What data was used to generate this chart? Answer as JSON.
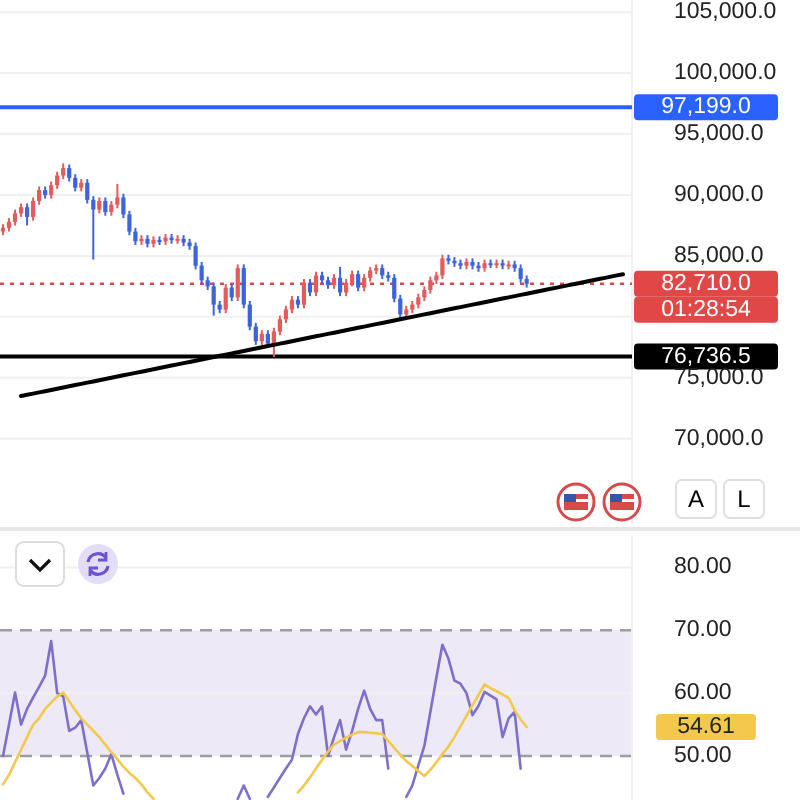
{
  "chart_data": [
    {
      "type": "candlestick",
      "categories": [
        null,
        null,
        null,
        null,
        null,
        null,
        null,
        null,
        null,
        null,
        null,
        null,
        null,
        null,
        null,
        null,
        null,
        null,
        null,
        null,
        null,
        null,
        null,
        null,
        null,
        null,
        null,
        null,
        null,
        null,
        null,
        null,
        null,
        null,
        null,
        null,
        null,
        null,
        null,
        null,
        null,
        null,
        null,
        null,
        null,
        null,
        null,
        null,
        null,
        null,
        null,
        null,
        null,
        null,
        null,
        null,
        null,
        null,
        null,
        null,
        null,
        null,
        null,
        null,
        null,
        null,
        null,
        null,
        null,
        null,
        null,
        null,
        null,
        null,
        null,
        null,
        null,
        null,
        null,
        null,
        null,
        null,
        null,
        null,
        null,
        null,
        null,
        null,
        null,
        null,
        null,
        null,
        null,
        null,
        null,
        null,
        null,
        null,
        null,
        null,
        null,
        null,
        null,
        null,
        null
      ],
      "ohlc": [
        [
          87000,
          87600,
          86700,
          87300
        ],
        [
          87300,
          88100,
          87000,
          87800
        ],
        [
          87800,
          88800,
          87500,
          88500
        ],
        [
          88500,
          89300,
          88200,
          89000
        ],
        [
          89000,
          89300,
          87500,
          88200
        ],
        [
          88200,
          89800,
          87900,
          89500
        ],
        [
          89500,
          90700,
          89200,
          90400
        ],
        [
          90400,
          90700,
          89700,
          90000
        ],
        [
          90000,
          91100,
          89700,
          90800
        ],
        [
          90800,
          91900,
          90500,
          91600
        ],
        [
          91600,
          92600,
          91300,
          92200
        ],
        [
          92200,
          92500,
          91100,
          91400
        ],
        [
          91400,
          91700,
          90300,
          90600
        ],
        [
          90600,
          91300,
          90300,
          91000
        ],
        [
          91000,
          91300,
          89300,
          89600
        ],
        [
          89600,
          89900,
          84700,
          88800
        ],
        [
          88800,
          89800,
          88500,
          89500
        ],
        [
          89500,
          89800,
          88300,
          88600
        ],
        [
          88600,
          89500,
          88300,
          89200
        ],
        [
          89200,
          90900,
          88900,
          89800
        ],
        [
          89800,
          90100,
          88100,
          88400
        ],
        [
          88400,
          88700,
          86700,
          87000
        ],
        [
          87000,
          87300,
          85900,
          86200
        ],
        [
          86200,
          86700,
          85900,
          86400
        ],
        [
          86400,
          86700,
          85700,
          86000
        ],
        [
          86000,
          86600,
          85700,
          86300
        ],
        [
          86300,
          86600,
          85900,
          86200
        ],
        [
          86200,
          86800,
          85900,
          86500
        ],
        [
          86500,
          86800,
          86000,
          86300
        ],
        [
          86300,
          86700,
          86000,
          86400
        ],
        [
          86400,
          86700,
          85800,
          86100
        ],
        [
          86100,
          86400,
          85500,
          85800
        ],
        [
          85800,
          86100,
          83900,
          84200
        ],
        [
          84200,
          84500,
          82700,
          83000
        ],
        [
          83000,
          83300,
          82200,
          82500
        ],
        [
          82500,
          82800,
          80100,
          81000
        ],
        [
          81000,
          81300,
          80300,
          80600
        ],
        [
          80600,
          82700,
          80300,
          82400
        ],
        [
          82400,
          82700,
          81300,
          81600
        ],
        [
          81600,
          84300,
          81300,
          84000
        ],
        [
          84000,
          84300,
          80700,
          81000
        ],
        [
          81000,
          81300,
          78900,
          79200
        ],
        [
          79200,
          79500,
          77700,
          78000
        ],
        [
          78000,
          78900,
          77700,
          78600
        ],
        [
          78600,
          78900,
          77500,
          77800
        ],
        [
          77800,
          79100,
          76700,
          78800
        ],
        [
          78800,
          80100,
          78500,
          79800
        ],
        [
          79800,
          80900,
          79500,
          80600
        ],
        [
          80600,
          81700,
          80300,
          81400
        ],
        [
          81400,
          81700,
          80700,
          81000
        ],
        [
          81000,
          83100,
          80700,
          82800
        ],
        [
          82800,
          83100,
          81700,
          82000
        ],
        [
          82000,
          83700,
          81700,
          83400
        ],
        [
          83400,
          83700,
          82700,
          83000
        ],
        [
          83000,
          83300,
          82300,
          82600
        ],
        [
          82600,
          83500,
          82300,
          83200
        ],
        [
          83200,
          84100,
          81700,
          82000
        ],
        [
          82000,
          83100,
          81700,
          82800
        ],
        [
          82800,
          83800,
          82500,
          83500
        ],
        [
          83500,
          83800,
          82100,
          82400
        ],
        [
          82400,
          83500,
          82100,
          83200
        ],
        [
          83200,
          84100,
          82900,
          83800
        ],
        [
          83800,
          84300,
          83500,
          84000
        ],
        [
          84000,
          84300,
          83100,
          83400
        ],
        [
          83400,
          83700,
          82900,
          83200
        ],
        [
          83200,
          83500,
          81200,
          81500
        ],
        [
          81500,
          81800,
          79900,
          80200
        ],
        [
          80200,
          80900,
          79900,
          80600
        ],
        [
          80600,
          81300,
          80300,
          81000
        ],
        [
          81000,
          81900,
          80700,
          81600
        ],
        [
          81600,
          82500,
          81300,
          82200
        ],
        [
          82200,
          83300,
          81900,
          83000
        ],
        [
          83000,
          83700,
          82700,
          83400
        ],
        [
          83400,
          85100,
          83100,
          84800
        ],
        [
          84800,
          85100,
          84300,
          84600
        ],
        [
          84600,
          84900,
          84100,
          84400
        ],
        [
          84400,
          84700,
          83900,
          84200
        ],
        [
          84200,
          84800,
          83900,
          84500
        ],
        [
          84500,
          84800,
          83900,
          84200
        ],
        [
          84200,
          84500,
          83700,
          84000
        ],
        [
          84000,
          84700,
          83700,
          84400
        ],
        [
          84400,
          84700,
          84000,
          84300
        ],
        [
          84300,
          84700,
          84000,
          84400
        ],
        [
          84400,
          84700,
          83900,
          84200
        ],
        [
          84200,
          84600,
          83900,
          84300
        ],
        [
          84300,
          84600,
          83700,
          84000
        ],
        [
          84000,
          84300,
          82800,
          83100
        ],
        [
          83100,
          83400,
          82400,
          82710
        ],
        null,
        null,
        null,
        null,
        null,
        null,
        null,
        null,
        null,
        null,
        null,
        null,
        null,
        null,
        null,
        null,
        null
      ],
      "colors": [
        "#e35b5b",
        "#e35b5b",
        "#e35b5b",
        "#e35b5b",
        "#3d63dd",
        "#e35b5b",
        "#e35b5b",
        "#3d63dd",
        "#e35b5b",
        "#e35b5b",
        "#e35b5b",
        "#3d63dd",
        "#3d63dd",
        "#e35b5b",
        "#3d63dd",
        "#3d63dd",
        "#e35b5b",
        "#3d63dd",
        "#e35b5b",
        "#e35b5b",
        "#3d63dd",
        "#3d63dd",
        "#3d63dd",
        "#e35b5b",
        "#3d63dd",
        "#e35b5b",
        "#3d63dd",
        "#e35b5b",
        "#3d63dd",
        "#e35b5b",
        "#3d63dd",
        "#3d63dd",
        "#3d63dd",
        "#3d63dd",
        "#3d63dd",
        "#3d63dd",
        "#3d63dd",
        "#e35b5b",
        "#3d63dd",
        "#e35b5b",
        "#3d63dd",
        "#3d63dd",
        "#3d63dd",
        "#e35b5b",
        "#3d63dd",
        "#e35b5b",
        "#e35b5b",
        "#e35b5b",
        "#e35b5b",
        "#3d63dd",
        "#e35b5b",
        "#3d63dd",
        "#e35b5b",
        "#3d63dd",
        "#3d63dd",
        "#e35b5b",
        "#3d63dd",
        "#e35b5b",
        "#e35b5b",
        "#3d63dd",
        "#e35b5b",
        "#e35b5b",
        "#e35b5b",
        "#3d63dd",
        "#3d63dd",
        "#3d63dd",
        "#3d63dd",
        "#e35b5b",
        "#e35b5b",
        "#e35b5b",
        "#e35b5b",
        "#e35b5b",
        "#e35b5b",
        "#e35b5b",
        "#3d63dd",
        "#3d63dd",
        "#3d63dd",
        "#e35b5b",
        "#3d63dd",
        "#3d63dd",
        "#e35b5b",
        "#3d63dd",
        "#e35b5b",
        "#3d63dd",
        "#e35b5b",
        "#3d63dd",
        "#3d63dd",
        "#3d63dd",
        null,
        null,
        null,
        null,
        null,
        null,
        null,
        null,
        null,
        null,
        null,
        null,
        null,
        null,
        null,
        null,
        null
      ],
      "series": [
        {
          "type": "line",
          "color": "#000000",
          "values": [
            null,
            null,
            null,
            73500,
            73600,
            73700,
            73800,
            73900,
            74000,
            74100,
            74200,
            74300,
            74400,
            74500,
            74600,
            74700,
            74800,
            74900,
            75000,
            75100,
            75200,
            75300,
            75400,
            75500,
            75600,
            75700,
            75800,
            75900,
            76000,
            76100,
            76200,
            76300,
            76400,
            76500,
            76600,
            76700,
            76800,
            76900,
            77000,
            77100,
            77200,
            77300,
            77400,
            77500,
            77600,
            77700,
            77800,
            77900,
            78000,
            78100,
            78200,
            78300,
            78400,
            78500,
            78600,
            78700,
            78800,
            78900,
            79000,
            79100,
            79200,
            79300,
            79400,
            79500,
            79600,
            79700,
            79800,
            79900,
            80000,
            80100,
            80200,
            80300,
            80400,
            80500,
            80600,
            80700,
            80800,
            80900,
            81000,
            81100,
            81200,
            81300,
            81400,
            81500,
            81600,
            81700,
            81800,
            81900,
            82000,
            82100,
            82200,
            82300,
            82400,
            82500,
            82600,
            82700,
            82800,
            82900,
            83000,
            83100,
            83200,
            83300,
            83400,
            83500,
            null
          ]
        }
      ],
      "ylim": [
        63000,
        106000
      ],
      "yticks": [
        {
          "value": 70000,
          "label": "70,000.0"
        },
        {
          "value": 75000,
          "label": "75,000.0"
        },
        {
          "value": 80000,
          "label": null
        },
        {
          "value": 85000,
          "label": "85,000.0"
        },
        {
          "value": 90000,
          "label": "90,000.0"
        },
        {
          "value": 95000,
          "label": "95,000.0"
        },
        {
          "value": 100000,
          "label": "100,000.0"
        },
        {
          "value": 105000,
          "label": "105,000.0"
        }
      ],
      "grid": "y",
      "ref_lines": [
        {
          "axis": "y",
          "value": 97199,
          "label": "97,199.0",
          "color": "#2962ff",
          "line_style": "solid"
        },
        {
          "axis": "y",
          "value": 76736.5,
          "label": "76,736.5",
          "color": "#000000",
          "line_style": "solid"
        },
        {
          "axis": "y",
          "value": 82710,
          "label": "82,710.0",
          "color": "#e04848",
          "line_style": "dotted"
        }
      ],
      "annotations": [
        "A",
        "L",
        "01:28:54"
      ]
    },
    {
      "type": "line",
      "categories": [
        null,
        null,
        null,
        null,
        null,
        null,
        null,
        null,
        null,
        null,
        null,
        null,
        null,
        null,
        null,
        null,
        null,
        null,
        null,
        null,
        null,
        null,
        null,
        null,
        null,
        null,
        null,
        null,
        null,
        null,
        null,
        null,
        null,
        null,
        null,
        null,
        null,
        null,
        null,
        null,
        null,
        null,
        null,
        null,
        null,
        null,
        null,
        null,
        null,
        null,
        null,
        null,
        null,
        null,
        null,
        null,
        null,
        null,
        null,
        null,
        null,
        null,
        null,
        null,
        null,
        null,
        null,
        null,
        null,
        null,
        null,
        null,
        null,
        null,
        null,
        null,
        null,
        null,
        null,
        null,
        null,
        null,
        null,
        null,
        null,
        null,
        null,
        null,
        null,
        null,
        null,
        null,
        null,
        null,
        null,
        null,
        null,
        null,
        null,
        null,
        null,
        null,
        null,
        null,
        null
      ],
      "series": [
        {
          "color": "#7e6fc9",
          "values": [
            50,
            55,
            60.1,
            55,
            57.5,
            59.3,
            61,
            62.8,
            68.3,
            60,
            59.5,
            54,
            54.5,
            55.7,
            50.5,
            45.3,
            46.5,
            48,
            50.3,
            47,
            44,
            null,
            null,
            null,
            null,
            null,
            null,
            null,
            null,
            null,
            null,
            null,
            null,
            null,
            null,
            null,
            null,
            null,
            null,
            43.2,
            45.3,
            43.2,
            null,
            null,
            43.5,
            45,
            46.5,
            48,
            49.4,
            53.5,
            56,
            57.9,
            56.6,
            57.9,
            50,
            53,
            55.7,
            51,
            54,
            57.5,
            60.4,
            57.5,
            55.7,
            55.7,
            48,
            null,
            null,
            43.5,
            45.3,
            48.5,
            51.6,
            57,
            62.5,
            67.7,
            65.5,
            62,
            61.5,
            60,
            56.5,
            58,
            60.2,
            59.6,
            59,
            53,
            56,
            57,
            48,
            null,
            null,
            null,
            null,
            null,
            null,
            null,
            null,
            null,
            null,
            null,
            null,
            null,
            null,
            null,
            null,
            null,
            null
          ]
        },
        {
          "color": "#f2c94c",
          "values": [
            45.5,
            47,
            49,
            51,
            53,
            55,
            56,
            57.5,
            58.5,
            59.5,
            60.1,
            58.7,
            57.3,
            56,
            55,
            54,
            53,
            51.8,
            50.6,
            49.5,
            48.3,
            47.3,
            46.5,
            45.5,
            44.2,
            43.2,
            null,
            null,
            null,
            null,
            null,
            null,
            null,
            null,
            null,
            null,
            null,
            null,
            null,
            null,
            null,
            null,
            null,
            null,
            null,
            null,
            null,
            null,
            null,
            44.2,
            45.3,
            46.6,
            48,
            49.4,
            50.7,
            51.8,
            52.4,
            52.9,
            53.4,
            53.8,
            53.8,
            53.7,
            53.6,
            53.5,
            52.4,
            51.3,
            50.2,
            49.2,
            48.4,
            47.6,
            46.8,
            47.8,
            49,
            50.3,
            51.5,
            53,
            54.7,
            56.4,
            58.1,
            59.7,
            61.4,
            60.8,
            60.3,
            59.8,
            59.2,
            57.3,
            55.8,
            54.61,
            null,
            null,
            null,
            null,
            null,
            null,
            null,
            null,
            null,
            null,
            null,
            null,
            null,
            null,
            null,
            null,
            null
          ]
        }
      ],
      "ylim": [
        43,
        85
      ],
      "yticks": [
        {
          "value": 50,
          "label": "50.00"
        },
        {
          "value": 60,
          "label": "60.00"
        },
        {
          "value": 70,
          "label": "70.00"
        },
        {
          "value": 80,
          "label": "80.00"
        }
      ],
      "grid": "y",
      "marker": "none",
      "line_style": "solid",
      "bands": [
        {
          "axis": "y",
          "from": 50,
          "to": 70,
          "color": "#ede9f7"
        }
      ],
      "annotations": [
        "54.61"
      ]
    }
  ]
}
